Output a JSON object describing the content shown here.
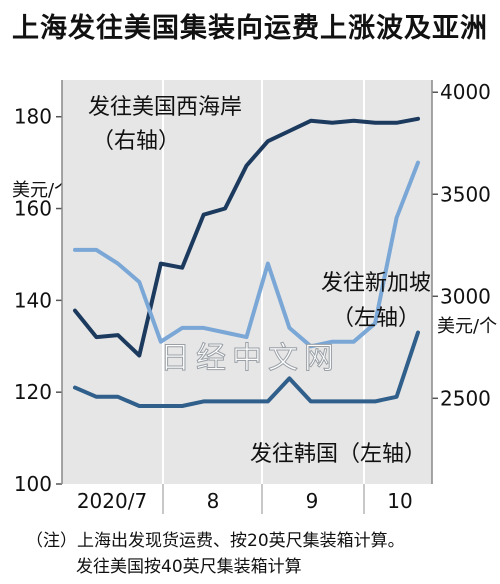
{
  "title": "上海发往美国集装向运费上涨波及亚洲",
  "unit_left": "美元/个",
  "unit_right": "美元/个",
  "watermark": "日经中文网",
  "notes": [
    "（注）上海出发现货运费、按20英尺集装箱计算。",
    "发往美国按40英尺集装箱计算"
  ],
  "chart_data": {
    "type": "line",
    "x_tick_labels": [
      "2020/7",
      "8",
      "9",
      "10"
    ],
    "left_axis": {
      "ticks": [
        100,
        120,
        140,
        160,
        180
      ],
      "ylim": [
        100,
        188
      ]
    },
    "right_axis": {
      "ticks": [
        2500,
        3000,
        3500,
        4000
      ],
      "ylim": [
        2080,
        4060
      ]
    },
    "series": [
      {
        "name": "发往美国西海岸（右轴）",
        "label_lines": [
          "发往美国西海岸",
          "（右轴）"
        ],
        "axis": "right",
        "color": "#1c3a5e",
        "values": [
          2930,
          2800,
          2810,
          2710,
          3160,
          3140,
          3400,
          3430,
          3640,
          3760,
          3810,
          3860,
          3850,
          3860,
          3850,
          3850,
          3870
        ]
      },
      {
        "name": "发往新加坡（左轴）",
        "label_lines": [
          "发往新加坡",
          "（左轴）"
        ],
        "axis": "left",
        "color": "#7aa7d6",
        "values": [
          151,
          151,
          148,
          144,
          131,
          134,
          134,
          133,
          132,
          148,
          134,
          130,
          131,
          131,
          135,
          158,
          170
        ]
      },
      {
        "name": "发往韩国（左轴）",
        "label_lines": [
          "发往韩国（左轴）"
        ],
        "axis": "left",
        "color": "#2f5f8a",
        "values": [
          121,
          119,
          119,
          117,
          117,
          117,
          118,
          118,
          118,
          118,
          123,
          118,
          118,
          118,
          118,
          119,
          133
        ]
      }
    ]
  }
}
